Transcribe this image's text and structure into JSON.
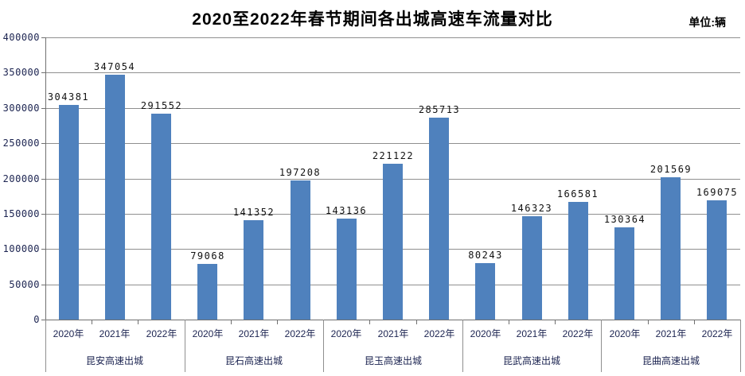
{
  "header": {
    "title": "2020至2022年春节期间各出城高速车流量对比",
    "unit_label": "单位:辆"
  },
  "chart_data": {
    "type": "bar",
    "title": "2020至2022年春节期间各出城高速车流量对比",
    "unit": "辆",
    "categories": [
      "2020年",
      "2021年",
      "2022年"
    ],
    "groups": [
      {
        "name": "昆安高速出城",
        "values": [
          304381,
          347054,
          291552
        ]
      },
      {
        "name": "昆石高速出城",
        "values": [
          79068,
          141352,
          197208
        ]
      },
      {
        "name": "昆玉高速出城",
        "values": [
          143136,
          221122,
          285713
        ]
      },
      {
        "name": "昆武高速出城",
        "values": [
          80243,
          146323,
          166581
        ]
      },
      {
        "name": "昆曲高速出城",
        "values": [
          130364,
          201569,
          169075
        ]
      }
    ],
    "ylim": [
      0,
      400000
    ],
    "yticks": [
      0,
      50000,
      100000,
      150000,
      200000,
      250000,
      300000,
      350000,
      400000
    ],
    "grid": true,
    "legend": "none",
    "data_labels": true,
    "colors": {
      "bar": "#4F81BD",
      "gridline": "#8f8f8f",
      "axis_line": "#707070",
      "axis_text": "#1b2350",
      "data_label_text": "#111111"
    }
  }
}
